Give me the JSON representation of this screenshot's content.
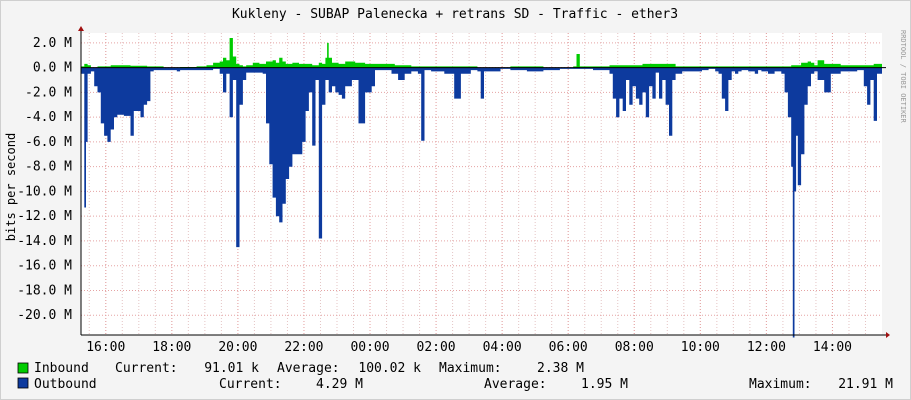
{
  "chart_data": {
    "type": "area",
    "title": "Kukleny - SUBAP Palenecka + retrans SD - Traffic - ether3",
    "ylabel": "bits per second",
    "watermark": "RRDTOOL / TOBI OETIKER",
    "ylim": [
      -21.6,
      2.8
    ],
    "y_ticks": [
      {
        "value": 2.0,
        "label": "2.0 M"
      },
      {
        "value": 0.0,
        "label": "0.0 M"
      },
      {
        "value": -2.0,
        "label": "-2.0 M"
      },
      {
        "value": -4.0,
        "label": "-4.0 M"
      },
      {
        "value": -6.0,
        "label": "-6.0 M"
      },
      {
        "value": -8.0,
        "label": "-8.0 M"
      },
      {
        "value": -10.0,
        "label": "-10.0 M"
      },
      {
        "value": -12.0,
        "label": "-12.0 M"
      },
      {
        "value": -14.0,
        "label": "-14.0 M"
      },
      {
        "value": -16.0,
        "label": "-16.0 M"
      },
      {
        "value": -18.0,
        "label": "-18.0 M"
      },
      {
        "value": -20.0,
        "label": "-20.0 M"
      }
    ],
    "x_unit": "hours since 15:15",
    "xlim": [
      0,
      24.25
    ],
    "x_ticks": [
      {
        "value": 0.75,
        "label": "16:00"
      },
      {
        "value": 2.75,
        "label": "18:00"
      },
      {
        "value": 4.75,
        "label": "20:00"
      },
      {
        "value": 6.75,
        "label": "22:00"
      },
      {
        "value": 8.75,
        "label": "00:00"
      },
      {
        "value": 10.75,
        "label": "02:00"
      },
      {
        "value": 12.75,
        "label": "04:00"
      },
      {
        "value": 14.75,
        "label": "06:00"
      },
      {
        "value": 16.75,
        "label": "08:00"
      },
      {
        "value": 18.75,
        "label": "10:00"
      },
      {
        "value": 20.75,
        "label": "12:00"
      },
      {
        "value": 22.75,
        "label": "14:00"
      }
    ],
    "series": [
      {
        "name": "Inbound",
        "color": "#00cc00",
        "x": [
          0.0,
          0.1,
          0.2,
          0.3,
          0.5,
          0.9,
          1.5,
          2.0,
          2.5,
          3.0,
          3.5,
          3.8,
          4.0,
          4.2,
          4.3,
          4.4,
          4.5,
          4.6,
          4.7,
          4.8,
          4.9,
          5.0,
          5.2,
          5.4,
          5.6,
          5.8,
          5.9,
          6.0,
          6.1,
          6.2,
          6.4,
          6.6,
          6.8,
          7.0,
          7.2,
          7.3,
          7.4,
          7.45,
          7.5,
          7.6,
          7.8,
          8.0,
          8.3,
          8.6,
          9.0,
          9.5,
          10.0,
          11.0,
          12.0,
          13.0,
          14.0,
          14.9,
          15.0,
          15.1,
          15.5,
          16.0,
          17.0,
          18.0,
          19.0,
          20.0,
          21.0,
          21.5,
          21.8,
          22.0,
          22.1,
          22.2,
          22.3,
          22.5,
          23.0,
          23.5,
          24.0,
          24.25
        ],
        "values": [
          0.1,
          0.3,
          0.2,
          0.0,
          0.1,
          0.2,
          0.15,
          0.1,
          0.0,
          0.05,
          0.1,
          0.2,
          0.4,
          0.5,
          0.8,
          0.6,
          2.4,
          0.9,
          0.3,
          0.2,
          0.1,
          0.2,
          0.4,
          0.3,
          0.5,
          0.6,
          0.4,
          0.8,
          0.5,
          0.3,
          0.4,
          0.3,
          0.3,
          0.2,
          0.4,
          0.3,
          0.8,
          2.0,
          0.8,
          0.4,
          0.3,
          0.5,
          0.4,
          0.3,
          0.3,
          0.2,
          0.1,
          0.1,
          0.0,
          0.1,
          0.0,
          0.1,
          1.1,
          0.1,
          0.1,
          0.2,
          0.3,
          0.1,
          0.1,
          0.1,
          0.1,
          0.2,
          0.4,
          0.5,
          0.4,
          0.2,
          0.6,
          0.3,
          0.2,
          0.2,
          0.3,
          0.1
        ]
      },
      {
        "name": "Outbound",
        "color": "#0d3a9e",
        "x": [
          0.0,
          0.1,
          0.15,
          0.2,
          0.3,
          0.4,
          0.5,
          0.6,
          0.7,
          0.8,
          0.9,
          1.0,
          1.1,
          1.2,
          1.3,
          1.5,
          1.6,
          1.8,
          1.9,
          2.0,
          2.1,
          2.2,
          2.5,
          2.9,
          3.0,
          3.5,
          4.0,
          4.2,
          4.3,
          4.4,
          4.5,
          4.6,
          4.7,
          4.8,
          4.9,
          5.0,
          5.3,
          5.5,
          5.6,
          5.7,
          5.8,
          5.9,
          6.0,
          6.1,
          6.2,
          6.3,
          6.4,
          6.5,
          6.6,
          6.7,
          6.8,
          6.9,
          7.0,
          7.1,
          7.2,
          7.3,
          7.4,
          7.5,
          7.6,
          7.7,
          7.8,
          7.9,
          8.0,
          8.2,
          8.4,
          8.6,
          8.8,
          8.9,
          9.0,
          9.2,
          9.4,
          9.6,
          9.8,
          10.0,
          10.2,
          10.3,
          10.4,
          10.6,
          11.0,
          11.3,
          11.5,
          11.8,
          12.0,
          12.1,
          12.2,
          12.5,
          12.7,
          13.0,
          13.5,
          14.0,
          14.5,
          15.0,
          15.5,
          16.0,
          16.1,
          16.2,
          16.3,
          16.4,
          16.5,
          16.6,
          16.7,
          16.8,
          16.9,
          17.0,
          17.1,
          17.2,
          17.3,
          17.4,
          17.5,
          17.6,
          17.7,
          17.8,
          17.9,
          18.0,
          18.2,
          18.5,
          18.8,
          19.0,
          19.2,
          19.3,
          19.4,
          19.5,
          19.6,
          19.7,
          19.8,
          19.9,
          20.0,
          20.2,
          20.4,
          20.5,
          20.6,
          20.8,
          21.0,
          21.2,
          21.3,
          21.4,
          21.5,
          21.55,
          21.6,
          21.65,
          21.7,
          21.8,
          21.9,
          22.0,
          22.1,
          22.2,
          22.3,
          22.5,
          22.7,
          23.0,
          23.5,
          23.7,
          23.8,
          23.9,
          24.0,
          24.1,
          24.25
        ],
        "values": [
          -0.5,
          -11.3,
          -6.0,
          -0.5,
          -0.3,
          -1.5,
          -2.0,
          -4.5,
          -5.5,
          -6.0,
          -5.0,
          -4.0,
          -3.8,
          -3.8,
          -3.9,
          -5.5,
          -3.5,
          -4.0,
          -3.0,
          -2.7,
          -0.3,
          -0.2,
          -0.2,
          -0.3,
          -0.2,
          -0.2,
          -0.1,
          -0.5,
          -2.0,
          -0.5,
          -4.0,
          -1.0,
          -14.5,
          -3.0,
          -1.0,
          -0.4,
          -0.4,
          -0.5,
          -4.5,
          -7.8,
          -10.5,
          -12.0,
          -12.5,
          -11.0,
          -9.0,
          -8.0,
          -7.0,
          -7.0,
          -7.0,
          -6.0,
          -3.5,
          -2.0,
          -6.3,
          -1.0,
          -13.8,
          -3.0,
          -1.0,
          -2.0,
          -1.5,
          -2.0,
          -2.2,
          -2.5,
          -1.5,
          -1.0,
          -4.5,
          -2.0,
          -1.5,
          -0.2,
          -0.2,
          -0.2,
          -0.5,
          -1.0,
          -0.5,
          -0.3,
          -0.5,
          -5.9,
          -0.2,
          -0.3,
          -0.5,
          -2.5,
          -0.5,
          -0.2,
          -0.3,
          -2.5,
          -0.3,
          -0.3,
          -0.1,
          -0.2,
          -0.3,
          -0.2,
          -0.1,
          -0.1,
          -0.2,
          -0.5,
          -2.5,
          -4.0,
          -2.5,
          -3.5,
          -1.0,
          -3.0,
          -1.5,
          -2.5,
          -3.0,
          -2.0,
          -4.0,
          -1.5,
          -2.5,
          -0.4,
          -2.5,
          -1.0,
          -3.0,
          -5.5,
          -1.0,
          -0.5,
          -0.3,
          -0.3,
          -0.2,
          -0.1,
          -0.3,
          -0.5,
          -2.5,
          -3.5,
          -1.0,
          -0.3,
          -0.5,
          -0.3,
          -0.2,
          -0.3,
          -0.5,
          -0.2,
          -0.3,
          -0.5,
          -0.3,
          -0.5,
          -2.0,
          -4.0,
          -8.0,
          -21.8,
          -10.0,
          -5.5,
          -9.5,
          -7.0,
          -3.0,
          -1.5,
          -0.5,
          -0.3,
          -1.0,
          -2.0,
          -0.5,
          -0.3,
          -0.2,
          -1.5,
          -3.0,
          -1.0,
          -4.3,
          -0.5,
          -4.3
        ]
      }
    ]
  },
  "legend": {
    "inbound": {
      "name": "Inbound",
      "current_label": "Current:",
      "current": "91.01 k",
      "average_label": "Average:",
      "average": "100.02 k",
      "maximum_label": "Maximum:",
      "maximum": "2.38 M"
    },
    "outbound": {
      "name": "Outbound",
      "current_label": "Current:",
      "current": "4.29 M",
      "average_label": "Average:",
      "average": "1.95 M",
      "maximum_label": "Maximum:",
      "maximum": "21.91 M"
    }
  }
}
